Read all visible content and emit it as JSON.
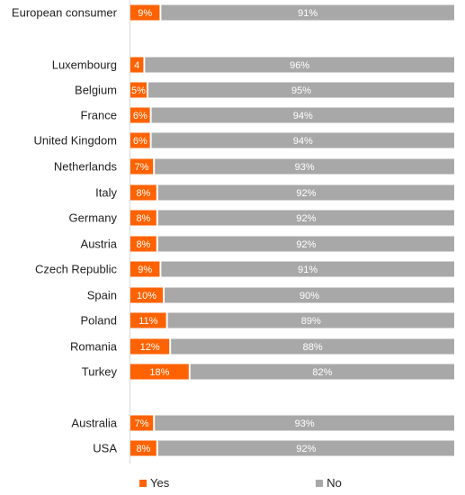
{
  "chart_data": {
    "type": "bar",
    "orientation": "horizontal",
    "stacked": true,
    "categories": [
      "European consumer",
      "Luxembourg",
      "Belgium",
      "France",
      "United Kingdom",
      "Netherlands",
      "Italy",
      "Germany",
      "Austria",
      "Czech Republic",
      "Spain",
      "Poland",
      "Romania",
      "Turkey",
      "Australia",
      "USA"
    ],
    "series": [
      {
        "name": "Yes",
        "color": "#ff6200",
        "values": [
          9,
          4,
          5,
          6,
          6,
          7,
          8,
          8,
          8,
          9,
          10,
          11,
          12,
          18,
          7,
          8
        ],
        "labels": [
          "9%",
          "4",
          "5%",
          "6%",
          "6%",
          "7%",
          "8%",
          "8%",
          "8%",
          "9%",
          "10%",
          "11%",
          "12%",
          "18%",
          "7%",
          "8%"
        ]
      },
      {
        "name": "No",
        "color": "#a8a8a8",
        "values": [
          91,
          96,
          95,
          94,
          94,
          93,
          92,
          92,
          92,
          91,
          90,
          89,
          88,
          82,
          93,
          92
        ],
        "labels": [
          "91%",
          "96%",
          "95%",
          "94%",
          "94%",
          "93%",
          "92%",
          "92%",
          "92%",
          "91%",
          "90%",
          "89%",
          "88%",
          "82%",
          "93%",
          "92%"
        ]
      }
    ],
    "xlim": [
      0,
      100
    ],
    "legend": "bottom",
    "grid": false
  },
  "legend": {
    "yes": "Yes",
    "no": "No"
  }
}
